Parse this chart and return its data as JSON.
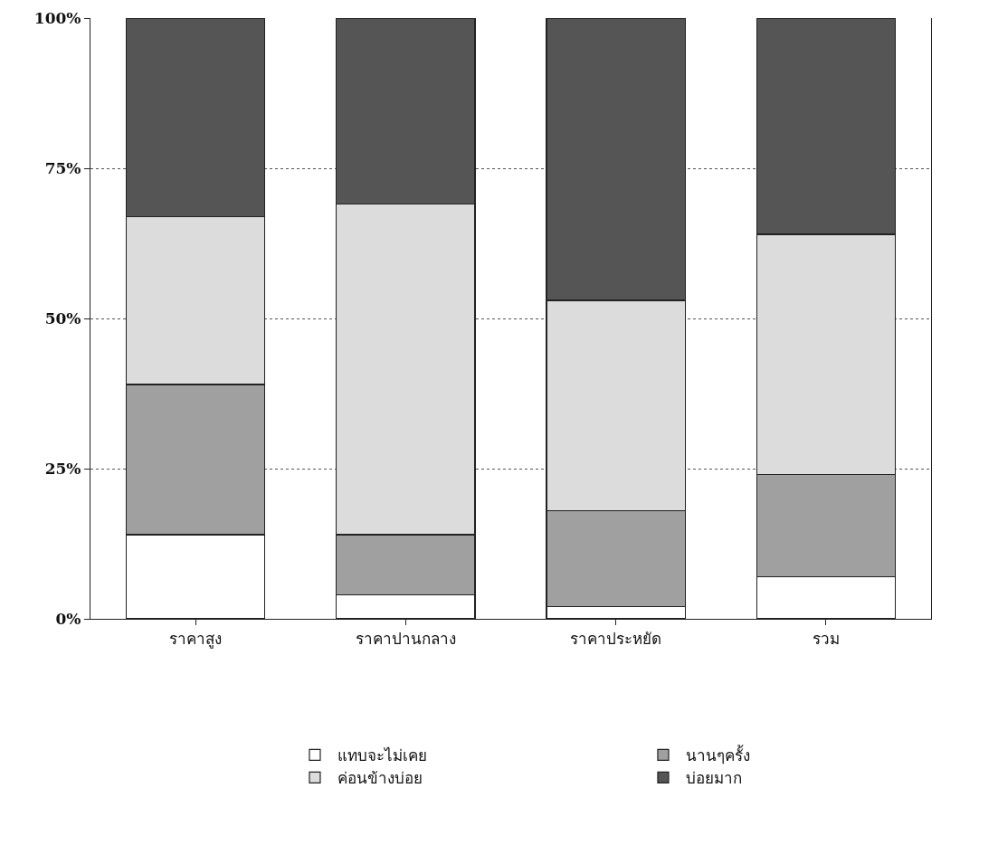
{
  "chart_data": {
    "type": "bar",
    "stacked": true,
    "categories": [
      "ราคาสูง",
      "ราคาปานกลาง",
      "ราคาประหยัด",
      "รวม"
    ],
    "series": [
      {
        "name": "แทบจะไม่เคย",
        "color": "#ffffff",
        "values": [
          14,
          4,
          2,
          7
        ]
      },
      {
        "name": "นานๆครั้ง",
        "color": "#a0a0a0",
        "values": [
          25,
          10,
          16,
          17
        ]
      },
      {
        "name": "ค่อนข้างบ่อย",
        "color": "#dcdcdc",
        "values": [
          28,
          55,
          35,
          40
        ]
      },
      {
        "name": "บ่อยมาก",
        "color": "#555555",
        "values": [
          33,
          31,
          47,
          36
        ]
      }
    ],
    "ylim": [
      0,
      100
    ],
    "yticks": [
      {
        "value": 0,
        "label": "0%"
      },
      {
        "value": 25,
        "label": "25%"
      },
      {
        "value": 50,
        "label": "50%"
      },
      {
        "value": 75,
        "label": "75%"
      },
      {
        "value": 100,
        "label": "100%"
      }
    ],
    "grid": "y",
    "legend": "bottom"
  }
}
